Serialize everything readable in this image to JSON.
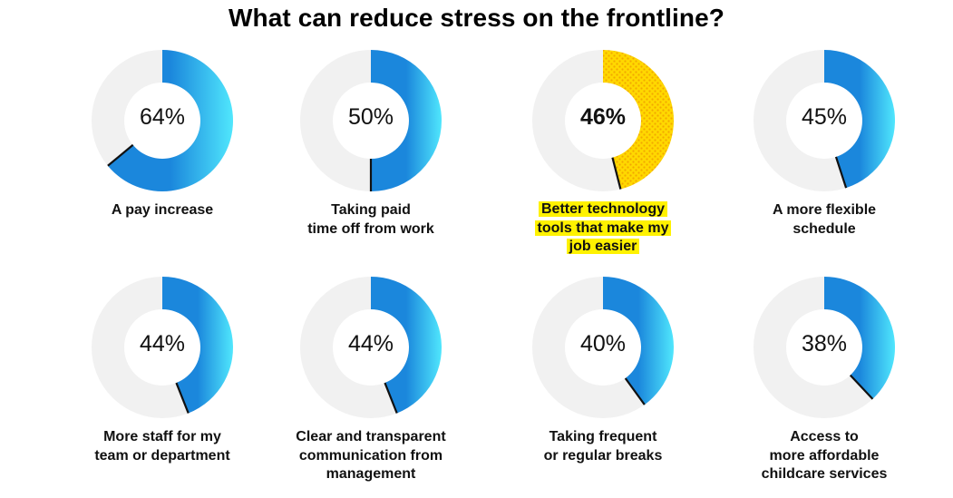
{
  "chart_data": {
    "type": "pie",
    "variant": "donut",
    "title": "What can reduce stress on the frontline?",
    "unit": "%",
    "highlight_index": 2,
    "colors": {
      "track": "#f1f1f1",
      "gradient_dark": "#1b87dc",
      "gradient_light": "#50e7fd",
      "highlight_fill": "#ffd800",
      "highlight_dots": "#f2a800",
      "highlight_label_bg": "#fff200",
      "divider": "#111111"
    },
    "items": [
      {
        "label": "A pay increase",
        "value": 64,
        "value_text": "64%"
      },
      {
        "label": "Taking paid\ntime off from work",
        "value": 50,
        "value_text": "50%"
      },
      {
        "label": "Better technology\ntools that make my\njob easier",
        "value": 46,
        "value_text": "46%"
      },
      {
        "label": "A more flexible\nschedule",
        "value": 45,
        "value_text": "45%"
      },
      {
        "label": "More staff for my\nteam or department",
        "value": 44,
        "value_text": "44%"
      },
      {
        "label": "Clear and transparent\ncommunication from\nmanagement",
        "value": 44,
        "value_text": "44%"
      },
      {
        "label": "Taking frequent\nor regular breaks",
        "value": 40,
        "value_text": "40%"
      },
      {
        "label": "Access to\nmore affordable\nchildcare services",
        "value": 38,
        "value_text": "38%"
      }
    ]
  }
}
